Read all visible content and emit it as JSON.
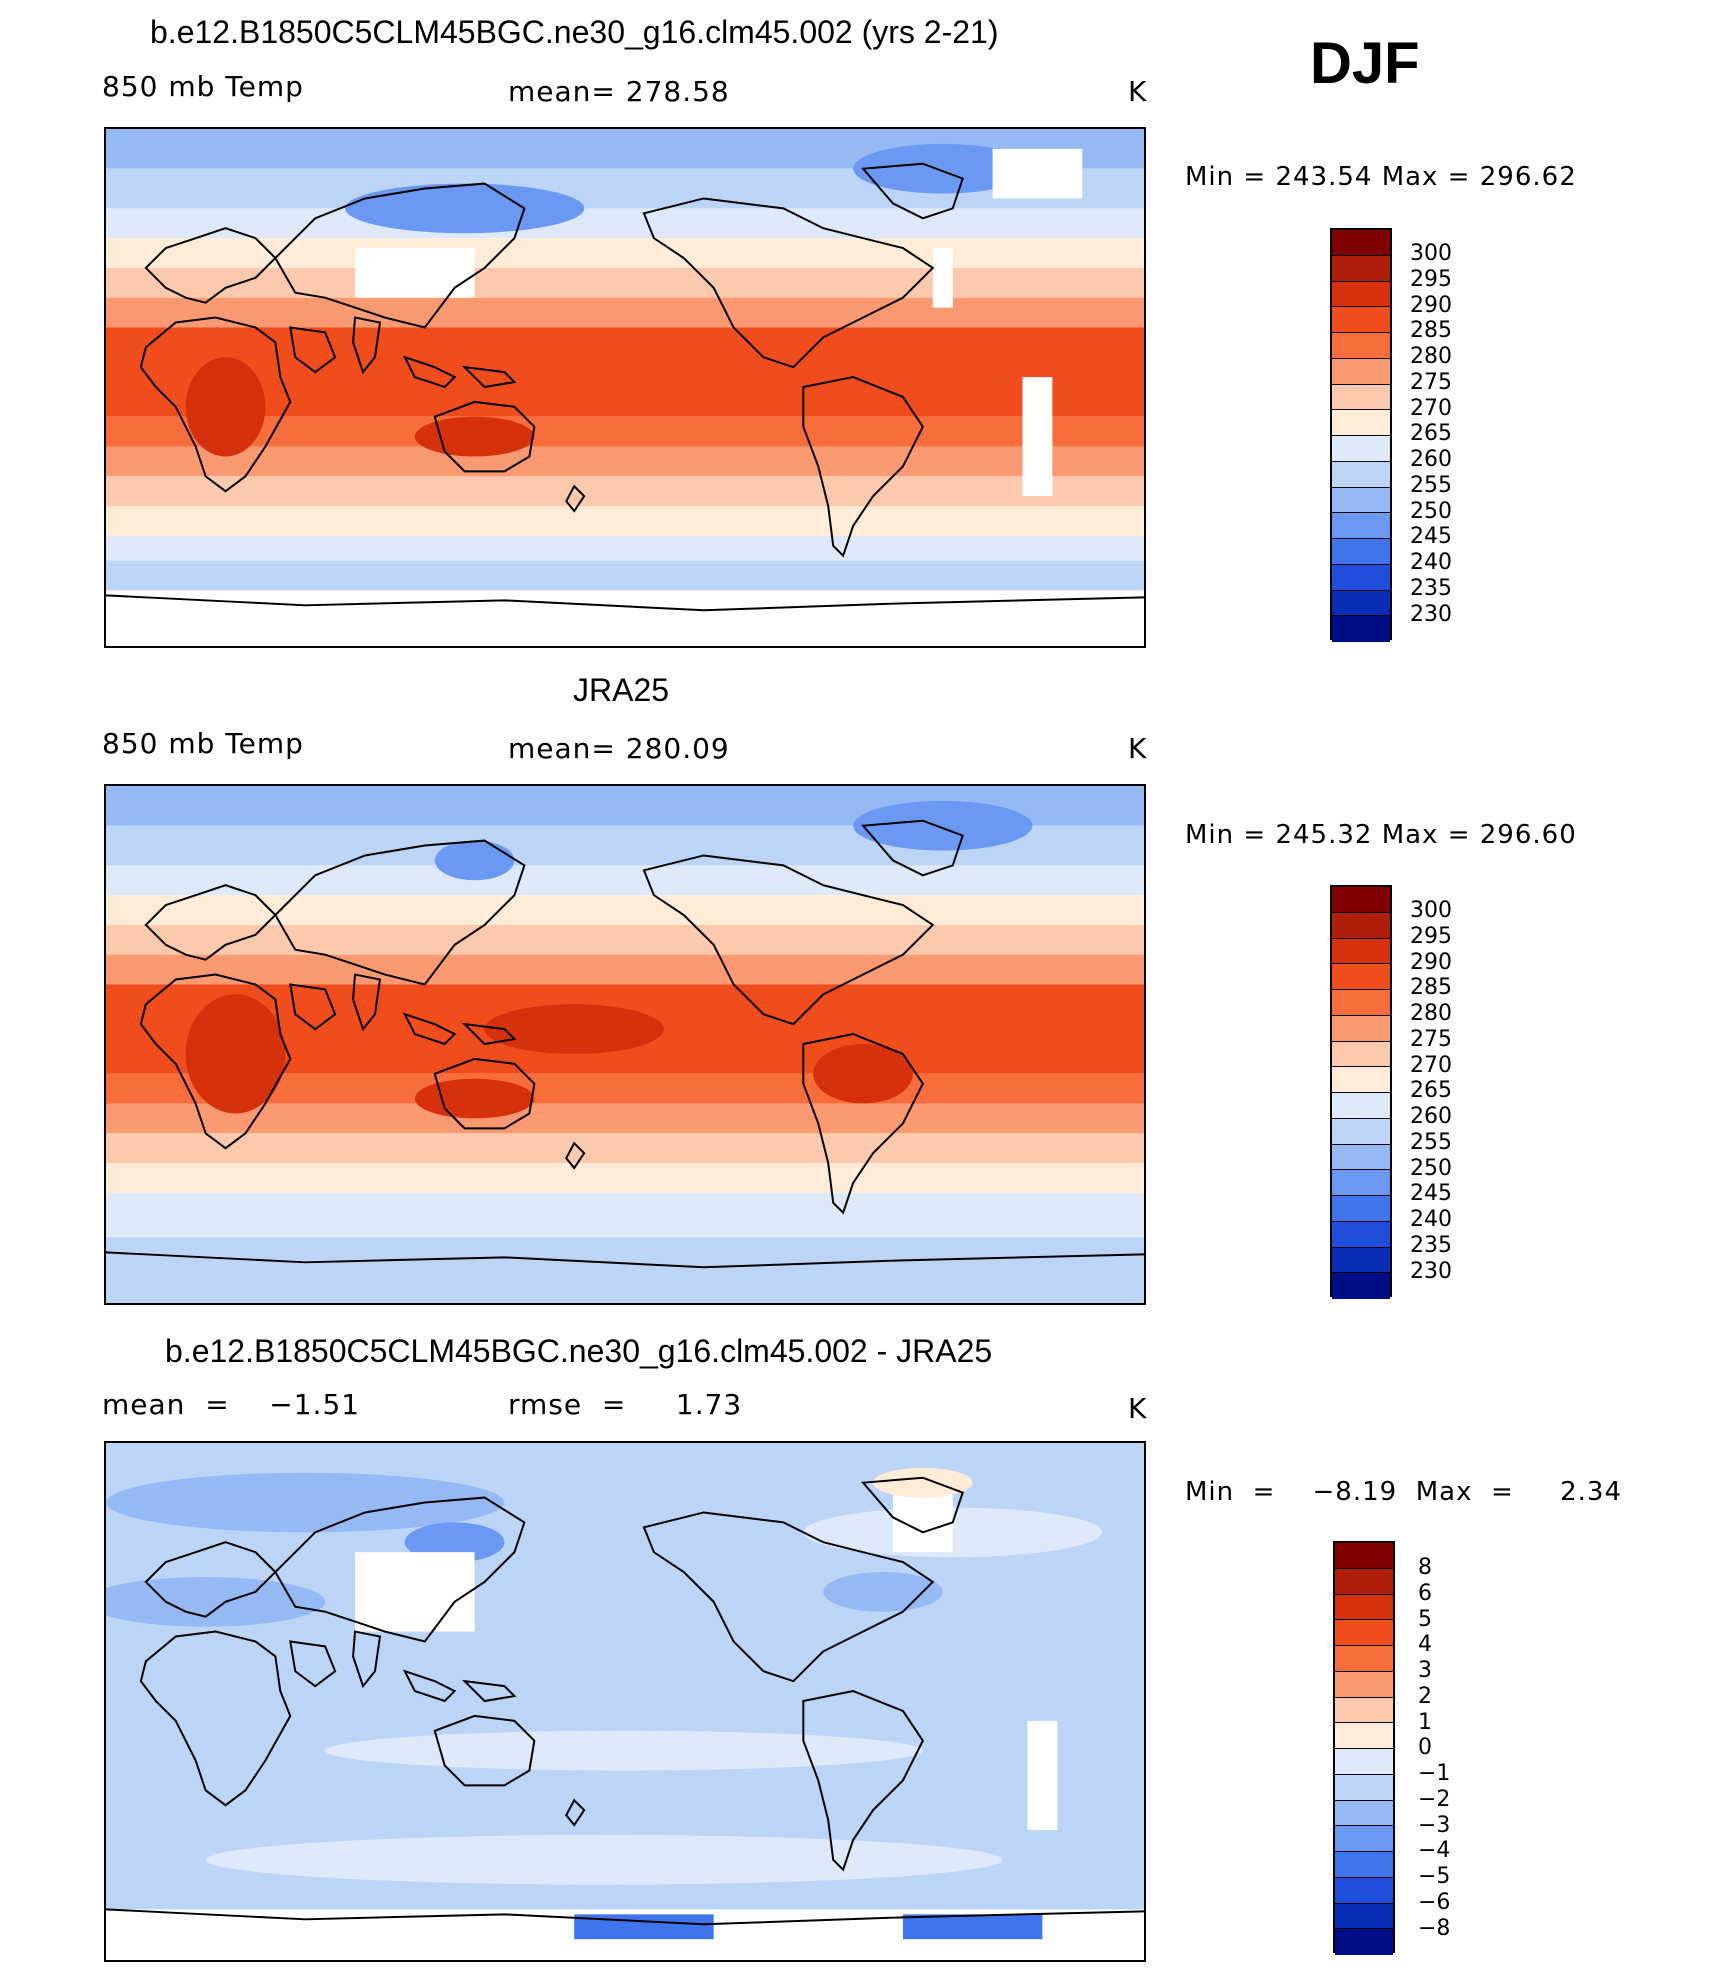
{
  "season": "DJF",
  "panels": [
    {
      "id": "model",
      "title": "b.e12.B1850C5CLM45BGC.ne30_g16.clm45.002 (yrs 2-21)",
      "left_text": "850 mb Temp",
      "center_text": "mean=  278.58",
      "units": "K",
      "min_max": "Min  =  243.54  Max  =  296.62",
      "colorbar_labels": [
        "300",
        "295",
        "290",
        "285",
        "280",
        "275",
        "270",
        "265",
        "260",
        "255",
        "250",
        "245",
        "240",
        "235",
        "230"
      ]
    },
    {
      "id": "obs",
      "title": "JRA25",
      "left_text": "850 mb Temp",
      "center_text": "mean=  280.09",
      "units": "K",
      "min_max": "Min  =  245.32  Max  =  296.60",
      "colorbar_labels": [
        "300",
        "295",
        "290",
        "285",
        "280",
        "275",
        "270",
        "265",
        "260",
        "255",
        "250",
        "245",
        "240",
        "235",
        "230"
      ]
    },
    {
      "id": "diff",
      "title": "b.e12.B1850C5CLM45BGC.ne30_g16.clm45.002 - JRA25",
      "left_text": "mean  =    −1.51",
      "center_text": "rmse  =     1.73",
      "units": "K",
      "min_max": "Min  =    −8.19  Max  =     2.34",
      "colorbar_labels": [
        "8",
        "6",
        "5",
        "4",
        "3",
        "2",
        "1",
        "0",
        "−1",
        "−2",
        "−3",
        "−4",
        "−5",
        "−6",
        "−8"
      ]
    }
  ],
  "colors": {
    "scale": [
      "#7f0000",
      "#b01e0a",
      "#d7300c",
      "#f04c1c",
      "#f76e3c",
      "#fb9a72",
      "#fdc9ad",
      "#feebd8",
      "#dde9f8",
      "#bcd4f6",
      "#94b9f5",
      "#6a98f2",
      "#3f74ec",
      "#1f4ddc",
      "#0a2db5",
      "#000c84"
    ],
    "land_outline": "#000000",
    "missing": "#ffffff"
  },
  "icons": [
    "world-coastline"
  ]
}
